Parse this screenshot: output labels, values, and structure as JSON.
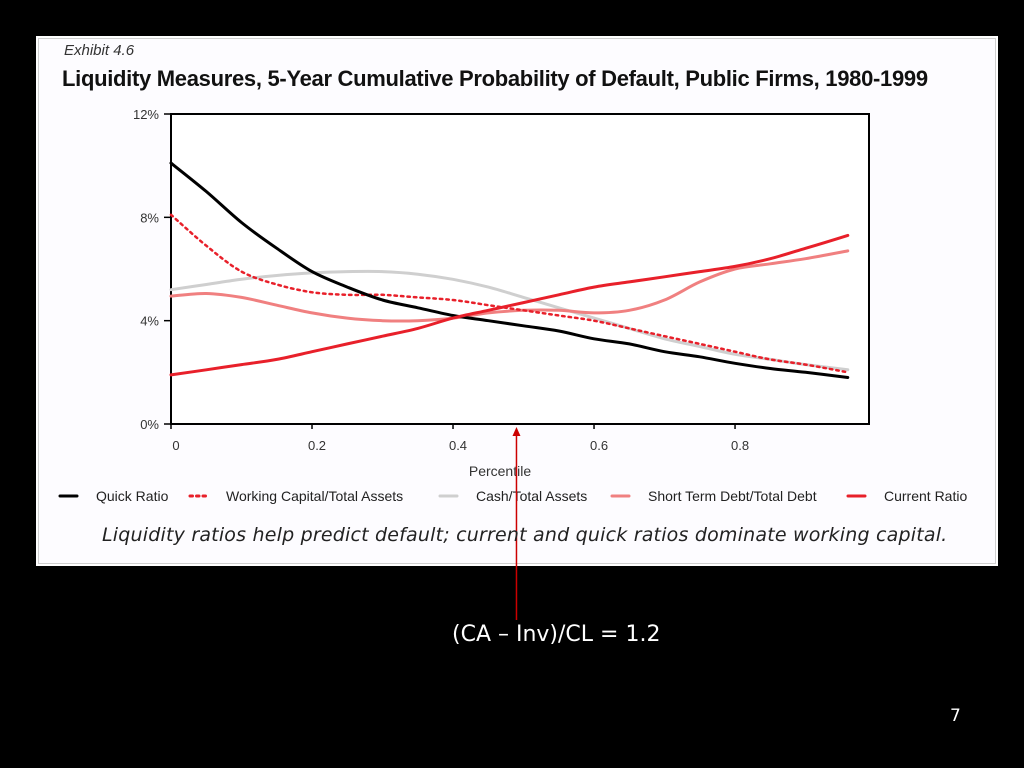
{
  "exhibit_label": "Exhibit 4.6",
  "caption": "Liquidity ratios help predict default; current and quick ratios dominate working capital.",
  "annotation": {
    "text": "(CA – Inv)/CL = 1.2",
    "x_value": 0.49,
    "color": "#cc0000"
  },
  "slide_number": "7",
  "chart_data": {
    "type": "line",
    "title": "Liquidity Measures, 5-Year Cumulative Probability of Default, Public Firms, 1980-1999",
    "xlabel": "Percentile",
    "ylabel": "",
    "xlim": [
      0,
      0.99
    ],
    "ylim": [
      0,
      12
    ],
    "x_ticks": [
      0,
      0.2,
      0.4,
      0.6,
      0.8
    ],
    "x_tick_labels": [
      "0",
      "0.2",
      "0.4",
      "0.6",
      "0.8"
    ],
    "y_ticks": [
      0,
      4,
      8,
      12
    ],
    "y_tick_labels": [
      "0%",
      "4%",
      "8%",
      "12%"
    ],
    "grid": false,
    "legend_position": "bottom",
    "x": [
      0,
      0.05,
      0.1,
      0.15,
      0.2,
      0.25,
      0.3,
      0.35,
      0.4,
      0.45,
      0.5,
      0.55,
      0.6,
      0.65,
      0.7,
      0.75,
      0.8,
      0.85,
      0.9,
      0.96
    ],
    "series": [
      {
        "name": "Quick Ratio",
        "color": "#000000",
        "dash": "solid",
        "values": [
          10.1,
          9.0,
          7.8,
          6.8,
          5.9,
          5.3,
          4.8,
          4.5,
          4.2,
          4.0,
          3.8,
          3.6,
          3.3,
          3.1,
          2.8,
          2.6,
          2.35,
          2.15,
          2.0,
          1.8
        ]
      },
      {
        "name": "Working Capital/Total Assets",
        "color": "#e8202a",
        "dash": "dotted",
        "values": [
          8.1,
          6.9,
          5.9,
          5.4,
          5.1,
          5.0,
          5.0,
          4.9,
          4.8,
          4.6,
          4.4,
          4.2,
          4.0,
          3.7,
          3.4,
          3.1,
          2.8,
          2.5,
          2.3,
          2.0
        ]
      },
      {
        "name": "Cash/Total Assets",
        "color": "#cfcfcf",
        "dash": "solid",
        "values": [
          5.2,
          5.4,
          5.6,
          5.75,
          5.85,
          5.9,
          5.9,
          5.8,
          5.6,
          5.3,
          4.9,
          4.5,
          4.1,
          3.7,
          3.3,
          3.0,
          2.7,
          2.5,
          2.3,
          2.1
        ]
      },
      {
        "name": "Short Term Debt/Total Debt",
        "color": "#f08080",
        "dash": "solid",
        "values": [
          4.95,
          5.05,
          4.9,
          4.6,
          4.3,
          4.1,
          4.0,
          4.0,
          4.1,
          4.3,
          4.4,
          4.4,
          4.3,
          4.4,
          4.8,
          5.5,
          6.0,
          6.2,
          6.4,
          6.7
        ]
      },
      {
        "name": "Current Ratio",
        "color": "#e8202a",
        "dash": "solid",
        "values": [
          1.9,
          2.1,
          2.3,
          2.5,
          2.8,
          3.1,
          3.4,
          3.7,
          4.1,
          4.4,
          4.7,
          5.0,
          5.3,
          5.5,
          5.7,
          5.9,
          6.1,
          6.4,
          6.8,
          7.3
        ]
      }
    ]
  }
}
